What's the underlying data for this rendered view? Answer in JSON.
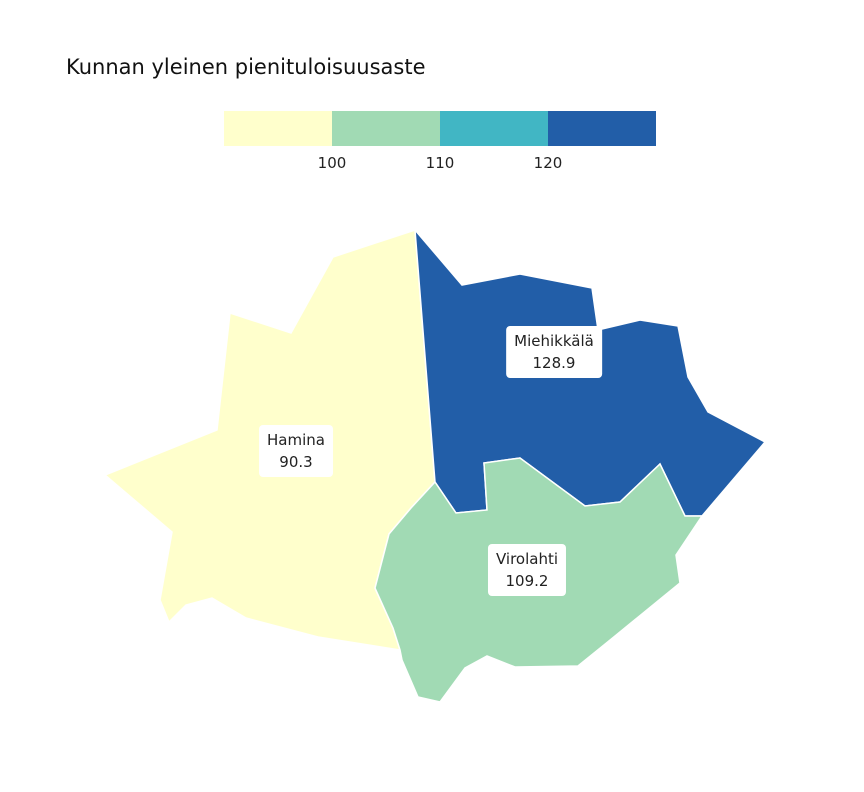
{
  "title": "Kunnan yleinen pienituloisuusaste",
  "legend": {
    "colors": [
      "#ffffcc",
      "#a1dab4",
      "#41b6c4",
      "#225ea8"
    ],
    "ticks": [
      "100",
      "110",
      "120"
    ]
  },
  "regions": [
    {
      "name": "Hamina",
      "value": "90.3",
      "color": "#ffffcc"
    },
    {
      "name": "Miehikkälä",
      "value": "128.9",
      "color": "#225ea8"
    },
    {
      "name": "Virolahti",
      "value": "109.2",
      "color": "#a1dab4"
    }
  ]
}
